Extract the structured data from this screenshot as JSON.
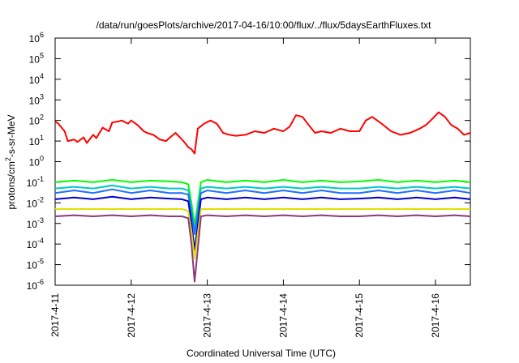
{
  "chart_data": {
    "type": "line",
    "title": "/data/run/goesPlots/archive/2017-04-16/10:00/flux/../flux/5daysEarthFluxes.txt",
    "xlabel": "Coordinated Universal Time (UTC)",
    "ylabel_parts": {
      "main": "protons/cm",
      "sup": "2",
      "rest": "-s-sr-MeV"
    },
    "y_scale": "log",
    "ylim": [
      1e-06,
      1000000.0
    ],
    "y_ticks": [
      {
        "value": 1e-06,
        "base": "10",
        "exp": "-6"
      },
      {
        "value": 1e-05,
        "base": "10",
        "exp": "-5"
      },
      {
        "value": 0.0001,
        "base": "10",
        "exp": "-4"
      },
      {
        "value": 0.001,
        "base": "10",
        "exp": "-3"
      },
      {
        "value": 0.01,
        "base": "10",
        "exp": "-2"
      },
      {
        "value": 0.1,
        "base": "10",
        "exp": "-1"
      },
      {
        "value": 1.0,
        "base": "10",
        "exp": "0"
      },
      {
        "value": 10.0,
        "base": "10",
        "exp": "1"
      },
      {
        "value": 100.0,
        "base": "10",
        "exp": "2"
      },
      {
        "value": 1000.0,
        "base": "10",
        "exp": "3"
      },
      {
        "value": 10000.0,
        "base": "10",
        "exp": "4"
      },
      {
        "value": 100000.0,
        "base": "10",
        "exp": "5"
      },
      {
        "value": 1000000.0,
        "base": "10",
        "exp": "6"
      }
    ],
    "xlim": [
      "2017-04-11T00:00",
      "2017-04-16T11:00"
    ],
    "x_ticks": [
      {
        "value": "2017-04-11T00:00",
        "label": "2017-4-11"
      },
      {
        "value": "2017-04-12T00:00",
        "label": "2017-4-12"
      },
      {
        "value": "2017-04-13T00:00",
        "label": "2017-4-13"
      },
      {
        "value": "2017-04-14T00:00",
        "label": "2017-4-14"
      },
      {
        "value": "2017-04-15T00:00",
        "label": "2017-4-15"
      },
      {
        "value": "2017-04-16T00:00",
        "label": "2017-4-16"
      }
    ],
    "grid": false,
    "legend": "none",
    "series": [
      {
        "color": "#ff0000",
        "x": [
          "2017-04-11T00:00",
          "2017-04-11T01:00",
          "2017-04-11T03:00",
          "2017-04-11T04:00",
          "2017-04-11T06:00",
          "2017-04-11T07:00",
          "2017-04-11T09:00",
          "2017-04-11T10:00",
          "2017-04-11T12:00",
          "2017-04-11T13:00",
          "2017-04-11T15:00",
          "2017-04-11T17:00",
          "2017-04-11T18:00",
          "2017-04-11T20:00",
          "2017-04-11T21:00",
          "2017-04-11T23:00",
          "2017-04-12T00:00",
          "2017-04-12T02:00",
          "2017-04-12T04:00",
          "2017-04-12T05:00",
          "2017-04-12T07:00",
          "2017-04-12T09:00",
          "2017-04-12T11:00",
          "2017-04-12T12:00",
          "2017-04-12T14:00",
          "2017-04-12T16:00",
          "2017-04-12T17:00",
          "2017-04-12T18:00",
          "2017-04-12T19:00",
          "2017-04-12T20:00",
          "2017-04-12T21:00",
          "2017-04-12T23:00",
          "2017-04-13T01:00",
          "2017-04-13T03:00",
          "2017-04-13T05:00",
          "2017-04-13T07:00",
          "2017-04-13T09:00",
          "2017-04-13T12:00",
          "2017-04-13T15:00",
          "2017-04-13T18:00",
          "2017-04-13T21:00",
          "2017-04-14T00:00",
          "2017-04-14T02:00",
          "2017-04-14T04:00",
          "2017-04-14T06:00",
          "2017-04-14T08:00",
          "2017-04-14T10:00",
          "2017-04-14T12:00",
          "2017-04-14T15:00",
          "2017-04-14T18:00",
          "2017-04-14T21:00",
          "2017-04-15T00:00",
          "2017-04-15T02:00",
          "2017-04-15T04:00",
          "2017-04-15T07:00",
          "2017-04-15T10:00",
          "2017-04-15T13:00",
          "2017-04-15T16:00",
          "2017-04-15T19:00",
          "2017-04-15T21:00",
          "2017-04-15T23:00",
          "2017-04-16T01:00",
          "2017-04-16T03:00",
          "2017-04-16T05:00",
          "2017-04-16T07:00",
          "2017-04-16T09:00",
          "2017-04-16T11:00"
        ],
        "y": [
          90,
          70,
          30,
          10,
          12,
          9,
          15,
          8,
          20,
          14,
          45,
          30,
          80,
          90,
          100,
          70,
          100,
          60,
          30,
          25,
          20,
          12,
          10,
          14,
          25,
          12,
          8,
          5,
          4,
          2.5,
          40,
          70,
          100,
          70,
          25,
          20,
          18,
          20,
          30,
          25,
          40,
          30,
          50,
          180,
          150,
          60,
          25,
          30,
          25,
          40,
          30,
          30,
          100,
          150,
          70,
          30,
          20,
          25,
          40,
          60,
          120,
          250,
          150,
          60,
          40,
          20,
          25
        ]
      },
      {
        "color": "#00ff00",
        "x": [
          "2017-04-11T00:00",
          "2017-04-11T06:00",
          "2017-04-11T12:00",
          "2017-04-11T18:00",
          "2017-04-12T00:00",
          "2017-04-12T06:00",
          "2017-04-12T12:00",
          "2017-04-12T16:00",
          "2017-04-12T18:00",
          "2017-04-12T19:00",
          "2017-04-12T20:00",
          "2017-04-12T22:00",
          "2017-04-13T00:00",
          "2017-04-13T06:00",
          "2017-04-13T12:00",
          "2017-04-13T18:00",
          "2017-04-14T00:00",
          "2017-04-14T06:00",
          "2017-04-14T12:00",
          "2017-04-14T18:00",
          "2017-04-15T00:00",
          "2017-04-15T06:00",
          "2017-04-15T12:00",
          "2017-04-15T18:00",
          "2017-04-16T00:00",
          "2017-04-16T06:00",
          "2017-04-16T11:00"
        ],
        "y": [
          0.1,
          0.12,
          0.1,
          0.13,
          0.1,
          0.12,
          0.11,
          0.1,
          0.08,
          0.01,
          0.0008,
          0.1,
          0.13,
          0.1,
          0.12,
          0.1,
          0.13,
          0.1,
          0.12,
          0.1,
          0.11,
          0.13,
          0.1,
          0.12,
          0.1,
          0.12,
          0.1
        ]
      },
      {
        "color": "#00c8c8",
        "x": [
          "2017-04-11T00:00",
          "2017-04-11T06:00",
          "2017-04-11T12:00",
          "2017-04-11T18:00",
          "2017-04-12T00:00",
          "2017-04-12T06:00",
          "2017-04-12T12:00",
          "2017-04-12T16:00",
          "2017-04-12T18:00",
          "2017-04-12T19:00",
          "2017-04-12T20:00",
          "2017-04-12T22:00",
          "2017-04-13T00:00",
          "2017-04-13T06:00",
          "2017-04-13T12:00",
          "2017-04-13T18:00",
          "2017-04-14T00:00",
          "2017-04-14T06:00",
          "2017-04-14T12:00",
          "2017-04-14T18:00",
          "2017-04-15T00:00",
          "2017-04-15T06:00",
          "2017-04-15T12:00",
          "2017-04-15T18:00",
          "2017-04-16T00:00",
          "2017-04-16T06:00",
          "2017-04-16T11:00"
        ],
        "y": [
          0.05,
          0.06,
          0.05,
          0.07,
          0.05,
          0.06,
          0.05,
          0.05,
          0.04,
          0.005,
          0.0004,
          0.05,
          0.06,
          0.05,
          0.06,
          0.05,
          0.06,
          0.05,
          0.06,
          0.05,
          0.05,
          0.06,
          0.05,
          0.06,
          0.05,
          0.06,
          0.05
        ]
      },
      {
        "color": "#1e6fff",
        "x": [
          "2017-04-11T00:00",
          "2017-04-11T06:00",
          "2017-04-11T12:00",
          "2017-04-11T18:00",
          "2017-04-12T00:00",
          "2017-04-12T06:00",
          "2017-04-12T12:00",
          "2017-04-12T16:00",
          "2017-04-12T18:00",
          "2017-04-12T19:00",
          "2017-04-12T20:00",
          "2017-04-12T22:00",
          "2017-04-13T00:00",
          "2017-04-13T06:00",
          "2017-04-13T12:00",
          "2017-04-13T18:00",
          "2017-04-14T00:00",
          "2017-04-14T06:00",
          "2017-04-14T12:00",
          "2017-04-14T18:00",
          "2017-04-15T00:00",
          "2017-04-15T06:00",
          "2017-04-15T12:00",
          "2017-04-15T18:00",
          "2017-04-16T00:00",
          "2017-04-16T06:00",
          "2017-04-16T11:00"
        ],
        "y": [
          0.03,
          0.04,
          0.03,
          0.045,
          0.03,
          0.04,
          0.03,
          0.03,
          0.025,
          0.003,
          0.0003,
          0.03,
          0.04,
          0.03,
          0.04,
          0.03,
          0.04,
          0.03,
          0.04,
          0.03,
          0.03,
          0.04,
          0.03,
          0.04,
          0.03,
          0.04,
          0.03
        ]
      },
      {
        "color": "#0000cd",
        "x": [
          "2017-04-11T00:00",
          "2017-04-11T06:00",
          "2017-04-11T12:00",
          "2017-04-11T18:00",
          "2017-04-12T00:00",
          "2017-04-12T06:00",
          "2017-04-12T12:00",
          "2017-04-12T16:00",
          "2017-04-12T18:00",
          "2017-04-12T19:00",
          "2017-04-12T20:00",
          "2017-04-12T22:00",
          "2017-04-13T00:00",
          "2017-04-13T06:00",
          "2017-04-13T12:00",
          "2017-04-13T18:00",
          "2017-04-14T00:00",
          "2017-04-14T06:00",
          "2017-04-14T12:00",
          "2017-04-14T18:00",
          "2017-04-15T00:00",
          "2017-04-15T06:00",
          "2017-04-15T12:00",
          "2017-04-15T18:00",
          "2017-04-16T00:00",
          "2017-04-16T06:00",
          "2017-04-16T11:00"
        ],
        "y": [
          0.015,
          0.018,
          0.015,
          0.02,
          0.015,
          0.018,
          0.016,
          0.015,
          0.012,
          0.001,
          5e-05,
          0.015,
          0.018,
          0.015,
          0.018,
          0.015,
          0.018,
          0.015,
          0.018,
          0.015,
          0.016,
          0.018,
          0.015,
          0.018,
          0.015,
          0.018,
          0.015
        ]
      },
      {
        "color": "#e0e000",
        "x": [
          "2017-04-11T00:00",
          "2017-04-11T06:00",
          "2017-04-11T12:00",
          "2017-04-11T18:00",
          "2017-04-12T00:00",
          "2017-04-12T06:00",
          "2017-04-12T12:00",
          "2017-04-12T16:00",
          "2017-04-12T18:00",
          "2017-04-12T19:00",
          "2017-04-12T20:00",
          "2017-04-12T22:00",
          "2017-04-13T00:00",
          "2017-04-13T06:00",
          "2017-04-13T12:00",
          "2017-04-13T18:00",
          "2017-04-14T00:00",
          "2017-04-14T06:00",
          "2017-04-14T12:00",
          "2017-04-14T18:00",
          "2017-04-15T00:00",
          "2017-04-15T06:00",
          "2017-04-15T12:00",
          "2017-04-15T18:00",
          "2017-04-16T00:00",
          "2017-04-16T06:00",
          "2017-04-16T11:00"
        ],
        "y": [
          0.005,
          0.005,
          0.005,
          0.005,
          0.005,
          0.005,
          0.005,
          0.005,
          0.004,
          0.0004,
          2e-05,
          0.005,
          0.005,
          0.005,
          0.005,
          0.005,
          0.005,
          0.005,
          0.005,
          0.005,
          0.005,
          0.005,
          0.005,
          0.005,
          0.005,
          0.005,
          0.005
        ]
      },
      {
        "color": "#8b3a7a",
        "x": [
          "2017-04-11T00:00",
          "2017-04-11T06:00",
          "2017-04-11T12:00",
          "2017-04-11T18:00",
          "2017-04-12T00:00",
          "2017-04-12T06:00",
          "2017-04-12T12:00",
          "2017-04-12T16:00",
          "2017-04-12T18:00",
          "2017-04-12T19:00",
          "2017-04-12T20:00",
          "2017-04-12T22:00",
          "2017-04-13T00:00",
          "2017-04-13T06:00",
          "2017-04-13T12:00",
          "2017-04-13T18:00",
          "2017-04-14T00:00",
          "2017-04-14T06:00",
          "2017-04-14T12:00",
          "2017-04-14T18:00",
          "2017-04-15T00:00",
          "2017-04-15T06:00",
          "2017-04-15T12:00",
          "2017-04-15T18:00",
          "2017-04-16T00:00",
          "2017-04-16T06:00",
          "2017-04-16T11:00"
        ],
        "y": [
          0.0022,
          0.0025,
          0.0022,
          0.0025,
          0.0022,
          0.0025,
          0.0022,
          0.0022,
          0.0018,
          0.0001,
          1.5e-06,
          0.0022,
          0.0025,
          0.0022,
          0.0025,
          0.0022,
          0.0025,
          0.0022,
          0.0025,
          0.0022,
          0.0022,
          0.0025,
          0.0022,
          0.0025,
          0.0022,
          0.0025,
          0.0022
        ]
      }
    ]
  }
}
